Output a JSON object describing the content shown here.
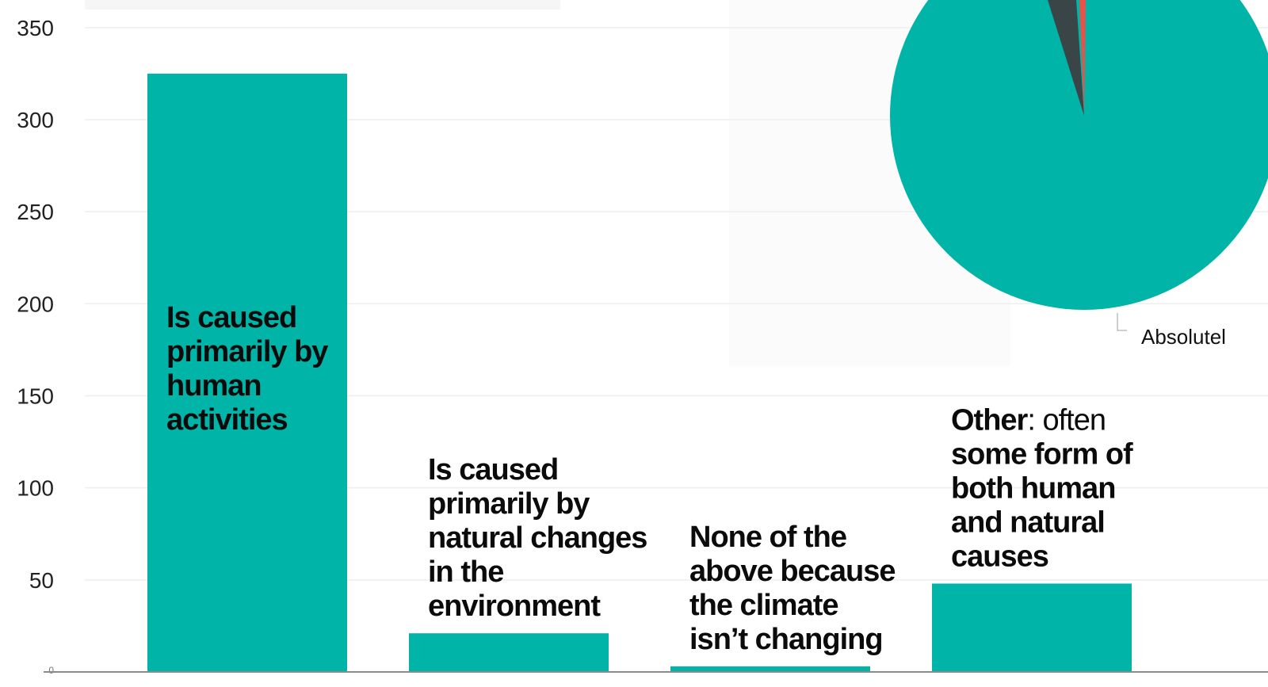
{
  "chart_data": {
    "type": "bar",
    "categories": [
      "Is caused primarily by human activities",
      "Is caused primarily by natural changes in the environment",
      "None of the above because the climate isn’t changing",
      "Other: often some form of both human and natural causes"
    ],
    "values": [
      325,
      21,
      3,
      48
    ],
    "ylim": [
      0,
      365
    ],
    "y_ticks": [
      "0",
      "50",
      "100",
      "150",
      "200",
      "250",
      "300",
      "350"
    ],
    "grid": true,
    "bar_color": "#00B4A8",
    "labels": [
      {
        "lines": [
          "Is caused",
          "primarily by",
          "human",
          "activities"
        ]
      },
      {
        "lines": [
          "Is caused",
          "primarily by",
          "natural changes",
          "in the",
          "environment"
        ]
      },
      {
        "lines": [
          "None of the",
          "above because",
          "the climate",
          "isn’t changing"
        ]
      },
      {
        "lines": [
          "Other: often",
          "some form of",
          "both human",
          "and natural",
          "causes"
        ],
        "emphasis": "Other",
        "emphasis_suffix": ": often"
      }
    ]
  },
  "pie_inset": {
    "label": "Absolutel",
    "colors": {
      "main": "#00B4A8",
      "dark": "#3A4548",
      "red": "#E8524A"
    }
  }
}
